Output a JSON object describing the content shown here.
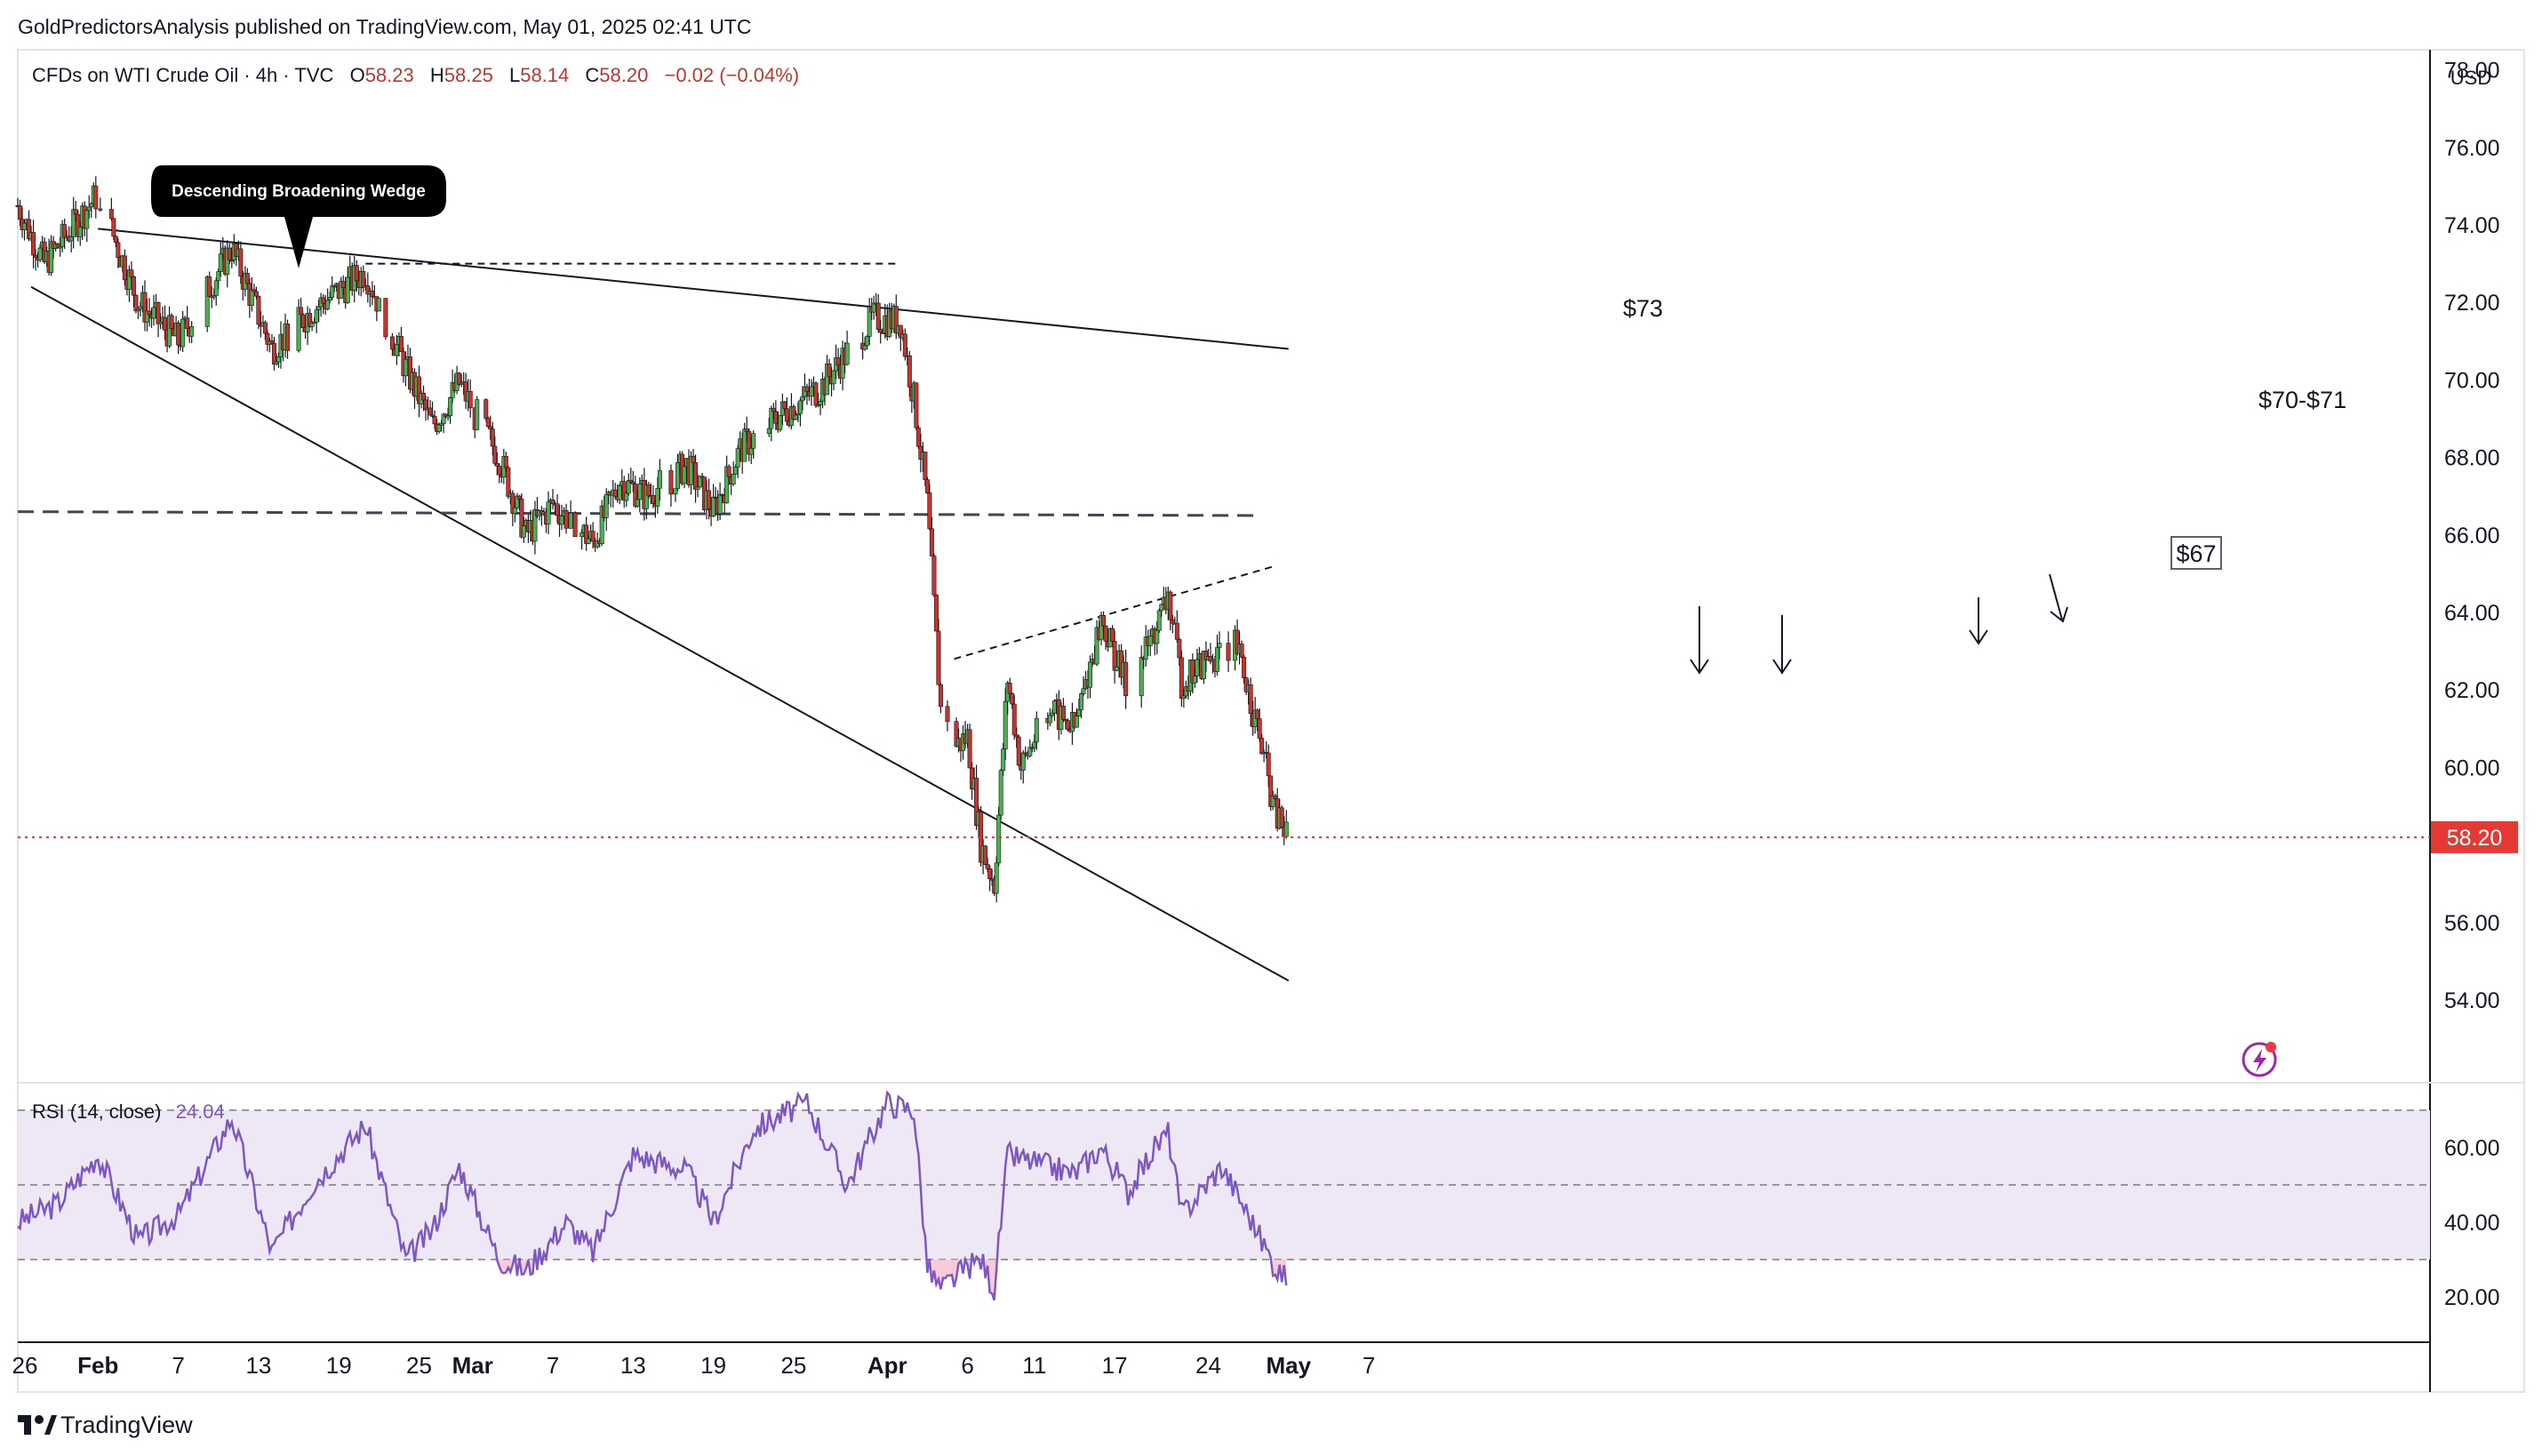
{
  "header": {
    "published": "GoldPredictorsAnalysis published on TradingView.com, May 01, 2025 02:41 UTC"
  },
  "legend": {
    "symbol": "CFDs on WTI Crude Oil · 4h · TVC",
    "o_label": "O",
    "o_value": "58.23",
    "h_label": "H",
    "h_value": "58.25",
    "l_label": "L",
    "l_value": "58.14",
    "c_label": "C",
    "c_value": "58.20",
    "change": "−0.02 (−0.04%)"
  },
  "currency": "USD",
  "last_price": "58.20",
  "rsi": {
    "label": "RSI (14, close)",
    "value": "24.04",
    "levels": [
      70,
      50,
      30
    ],
    "ticks": [
      "60.00",
      "40.00",
      "20.00"
    ]
  },
  "annotations": {
    "pattern": "Descending Broadening Wedge",
    "level_73": "$73",
    "level_70_71": "$70-$71",
    "level_67": "$67"
  },
  "footer": {
    "brand": "TradingView"
  },
  "colors": {
    "up": "#26a69a",
    "down": "#ef5350",
    "candle_body_up": "#4caf50",
    "candle_body_down": "#c2362f",
    "rsi_line": "#7e57c2",
    "rsi_band": "#ede7f6",
    "last_price": "#e53935",
    "text": "#131722"
  },
  "chart_data": [
    {
      "type": "candlestick",
      "y_ticks": [
        "78.00",
        "76.00",
        "74.00",
        "72.00",
        "70.00",
        "68.00",
        "66.00",
        "64.00",
        "62.00",
        "60.00",
        "58.00",
        "56.00",
        "54.00"
      ],
      "ylim": [
        53.0,
        79.0
      ],
      "x_ticks": [
        "26",
        "Feb",
        "7",
        "13",
        "19",
        "25",
        "Mar",
        "7",
        "13",
        "19",
        "25",
        "Apr",
        "6",
        "11",
        "17",
        "24",
        "May",
        "7"
      ],
      "price_path_keypoints": [
        {
          "date": "Jan 26",
          "price": 74.5
        },
        {
          "date": "Jan 28",
          "price": 73.0
        },
        {
          "date": "Feb 1",
          "price": 74.8
        },
        {
          "date": "Feb 4",
          "price": 72.0
        },
        {
          "date": "Feb 7",
          "price": 71.0
        },
        {
          "date": "Feb 11",
          "price": 73.4
        },
        {
          "date": "Feb 14",
          "price": 70.8
        },
        {
          "date": "Feb 17",
          "price": 71.8
        },
        {
          "date": "Feb 21",
          "price": 72.8
        },
        {
          "date": "Feb 24",
          "price": 70.3
        },
        {
          "date": "Feb 26",
          "price": 68.8
        },
        {
          "date": "Feb 28",
          "price": 69.9
        },
        {
          "date": "Mar 3",
          "price": 68.0
        },
        {
          "date": "Mar 5",
          "price": 66.0
        },
        {
          "date": "Mar 7",
          "price": 66.8
        },
        {
          "date": "Mar 10",
          "price": 65.8
        },
        {
          "date": "Mar 12",
          "price": 67.4
        },
        {
          "date": "Mar 14",
          "price": 67.0
        },
        {
          "date": "Mar 17",
          "price": 67.8
        },
        {
          "date": "Mar 19",
          "price": 66.6
        },
        {
          "date": "Mar 21",
          "price": 68.2
        },
        {
          "date": "Mar 24",
          "price": 69.1
        },
        {
          "date": "Mar 27",
          "price": 69.8
        },
        {
          "date": "Mar 31",
          "price": 71.6
        },
        {
          "date": "Apr 2",
          "price": 71.5
        },
        {
          "date": "Apr 3",
          "price": 69.5
        },
        {
          "date": "Apr 4",
          "price": 66.8
        },
        {
          "date": "Apr 5",
          "price": 61.5
        },
        {
          "date": "Apr 6",
          "price": 60.5
        },
        {
          "date": "Apr 7",
          "price": 60.8
        },
        {
          "date": "Apr 8",
          "price": 58.0
        },
        {
          "date": "Apr 9",
          "price": 57.0
        },
        {
          "date": "Apr 10",
          "price": 62.3
        },
        {
          "date": "Apr 11",
          "price": 60.0
        },
        {
          "date": "Apr 13",
          "price": 61.5
        },
        {
          "date": "Apr 15",
          "price": 61.0
        },
        {
          "date": "Apr 17",
          "price": 63.8
        },
        {
          "date": "Apr 19",
          "price": 62.0
        },
        {
          "date": "Apr 21",
          "price": 63.5
        },
        {
          "date": "Apr 22",
          "price": 64.4
        },
        {
          "date": "Apr 23",
          "price": 62.2
        },
        {
          "date": "Apr 25",
          "price": 62.8
        },
        {
          "date": "Apr 27",
          "price": 63.2
        },
        {
          "date": "Apr 28",
          "price": 62.0
        },
        {
          "date": "Apr 29",
          "price": 60.5
        },
        {
          "date": "Apr 30",
          "price": 58.8
        },
        {
          "date": "May 1",
          "price": 58.2
        }
      ],
      "trendlines": [
        {
          "name": "wedge-upper",
          "from": {
            "date": "Feb 1",
            "price": 73.9
          },
          "to": {
            "date": "May 1",
            "price": 70.8
          }
        },
        {
          "name": "wedge-lower",
          "from": {
            "date": "Jan 27",
            "price": 72.4
          },
          "to": {
            "date": "May 1",
            "price": 54.5
          }
        },
        {
          "name": "level-67",
          "from": {
            "date": "Jan 26",
            "price": 66.6
          },
          "to": {
            "date": "Apr 29",
            "price": 66.5
          },
          "style": "dashed"
        },
        {
          "name": "level-73",
          "from": {
            "date": "Feb 21",
            "price": 73.0
          },
          "to": {
            "date": "Apr 2",
            "price": 73.0
          },
          "style": "dashed"
        },
        {
          "name": "rising-resistance",
          "from": {
            "date": "Apr 6",
            "price": 62.8
          },
          "to": {
            "date": "Apr 30",
            "price": 65.2
          },
          "style": "dashed"
        }
      ]
    },
    {
      "type": "line",
      "name": "RSI (14, close)",
      "ylim": [
        10,
        75
      ],
      "levels": [
        70,
        50,
        30
      ],
      "keypoints": [
        {
          "date": "Jan 26",
          "value": 40
        },
        {
          "date": "Jan 29",
          "value": 45
        },
        {
          "date": "Feb 1",
          "value": 58
        },
        {
          "date": "Feb 4",
          "value": 35
        },
        {
          "date": "Feb 7",
          "value": 42
        },
        {
          "date": "Feb 11",
          "value": 68
        },
        {
          "date": "Feb 14",
          "value": 32
        },
        {
          "date": "Feb 17",
          "value": 50
        },
        {
          "date": "Feb 21",
          "value": 66
        },
        {
          "date": "Feb 24",
          "value": 30
        },
        {
          "date": "Feb 26",
          "value": 38
        },
        {
          "date": "Feb 28",
          "value": 55
        },
        {
          "date": "Mar 3",
          "value": 30
        },
        {
          "date": "Mar 5",
          "value": 27
        },
        {
          "date": "Mar 8",
          "value": 40
        },
        {
          "date": "Mar 10",
          "value": 32
        },
        {
          "date": "Mar 13",
          "value": 58
        },
        {
          "date": "Mar 17",
          "value": 54
        },
        {
          "date": "Mar 19",
          "value": 40
        },
        {
          "date": "Mar 22",
          "value": 65
        },
        {
          "date": "Mar 26",
          "value": 72
        },
        {
          "date": "Mar 29",
          "value": 50
        },
        {
          "date": "Apr 1",
          "value": 72
        },
        {
          "date": "Apr 3",
          "value": 70
        },
        {
          "date": "Apr 4",
          "value": 28
        },
        {
          "date": "Apr 5",
          "value": 22
        },
        {
          "date": "Apr 7",
          "value": 28
        },
        {
          "date": "Apr 8",
          "value": 30
        },
        {
          "date": "Apr 9",
          "value": 22
        },
        {
          "date": "Apr 10",
          "value": 58
        },
        {
          "date": "Apr 13",
          "value": 55
        },
        {
          "date": "Apr 15",
          "value": 53
        },
        {
          "date": "Apr 17",
          "value": 60
        },
        {
          "date": "Apr 19",
          "value": 48
        },
        {
          "date": "Apr 21",
          "value": 60
        },
        {
          "date": "Apr 22",
          "value": 64
        },
        {
          "date": "Apr 23",
          "value": 42
        },
        {
          "date": "Apr 26",
          "value": 55
        },
        {
          "date": "Apr 28",
          "value": 42
        },
        {
          "date": "Apr 29",
          "value": 35
        },
        {
          "date": "Apr 30",
          "value": 28
        },
        {
          "date": "May 1",
          "value": 24
        }
      ]
    }
  ]
}
